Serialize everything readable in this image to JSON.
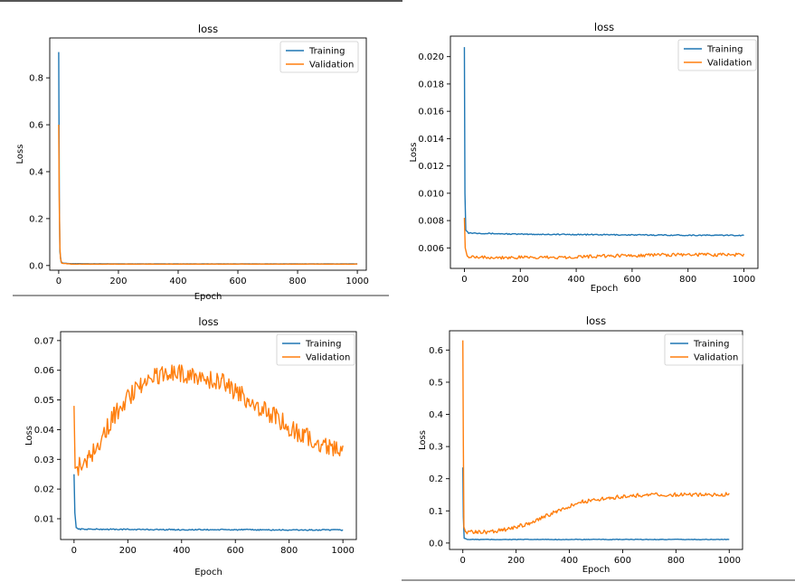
{
  "figure": {
    "background": "#ffffff",
    "series_colors": [
      "#1f77b4",
      "#ff7f0e"
    ]
  },
  "chart_data": [
    {
      "type": "line",
      "title": "loss",
      "xlabel": "Epoch",
      "ylabel": "Loss",
      "xlim": [
        -30,
        1030
      ],
      "ylim": [
        -0.02,
        0.97
      ],
      "xticks": [
        0,
        200,
        400,
        600,
        800,
        1000
      ],
      "xtick_labels": [
        "0",
        "200",
        "400",
        "600",
        "800",
        "1000"
      ],
      "yticks": [
        0.0,
        0.2,
        0.4,
        0.6,
        0.8
      ],
      "ytick_labels": [
        "0.0",
        "0.2",
        "0.4",
        "0.6",
        "0.8"
      ],
      "legend": "top-right",
      "series": [
        {
          "name": "Training",
          "color": "#1f77b4",
          "points": [
            [
              0,
              0.91
            ],
            [
              2,
              0.3
            ],
            [
              4,
              0.06
            ],
            [
              8,
              0.015
            ],
            [
              15,
              0.01
            ],
            [
              40,
              0.008
            ],
            [
              200,
              0.007
            ],
            [
              400,
              0.007
            ],
            [
              600,
              0.007
            ],
            [
              800,
              0.007
            ],
            [
              1000,
              0.007
            ]
          ]
        },
        {
          "name": "Validation",
          "color": "#ff7f0e",
          "points": [
            [
              0,
              0.6
            ],
            [
              2,
              0.25
            ],
            [
              4,
              0.08
            ],
            [
              6,
              0.03
            ],
            [
              10,
              0.01
            ],
            [
              40,
              0.006
            ],
            [
              200,
              0.006
            ],
            [
              400,
              0.006
            ],
            [
              600,
              0.006
            ],
            [
              800,
              0.006
            ],
            [
              1000,
              0.006
            ]
          ]
        }
      ]
    },
    {
      "type": "line",
      "title": "loss",
      "xlabel": "Epoch",
      "ylabel": "Loss",
      "xlim": [
        -50,
        1050
      ],
      "ylim": [
        0.0045,
        0.0215
      ],
      "xticks": [
        0,
        200,
        400,
        600,
        800,
        1000
      ],
      "xtick_labels": [
        "0",
        "200",
        "400",
        "600",
        "800",
        "1000"
      ],
      "yticks": [
        0.006,
        0.008,
        0.01,
        0.012,
        0.014,
        0.016,
        0.018,
        0.02
      ],
      "ytick_labels": [
        "0.006",
        "0.008",
        "0.010",
        "0.012",
        "0.014",
        "0.016",
        "0.018",
        "0.020"
      ],
      "legend": "top-right",
      "series": [
        {
          "name": "Training",
          "color": "#1f77b4",
          "points": [
            [
              0,
              0.0207
            ],
            [
              2,
              0.01
            ],
            [
              5,
              0.0073
            ],
            [
              15,
              0.0071
            ],
            [
              100,
              0.00705
            ],
            [
              200,
              0.007
            ],
            [
              400,
              0.00698
            ],
            [
              600,
              0.00695
            ],
            [
              800,
              0.00693
            ],
            [
              1000,
              0.00692
            ]
          ]
        },
        {
          "name": "Validation",
          "color": "#ff7f0e",
          "points": [
            [
              0,
              0.0082
            ],
            [
              3,
              0.006
            ],
            [
              10,
              0.0054
            ],
            [
              100,
              0.0053
            ],
            [
              200,
              0.0053
            ],
            [
              300,
              0.0053
            ],
            [
              400,
              0.00535
            ],
            [
              500,
              0.0054
            ],
            [
              600,
              0.00545
            ],
            [
              700,
              0.0055
            ],
            [
              800,
              0.0055
            ],
            [
              900,
              0.0055
            ],
            [
              1000,
              0.0055
            ]
          ]
        }
      ]
    },
    {
      "type": "line",
      "title": "loss",
      "xlabel": "Epoch",
      "ylabel": "Loss",
      "xlim": [
        -50,
        1050
      ],
      "ylim": [
        0.003,
        0.073
      ],
      "xticks": [
        0,
        200,
        400,
        600,
        800,
        1000
      ],
      "xtick_labels": [
        "0",
        "200",
        "400",
        "600",
        "800",
        "1000"
      ],
      "yticks": [
        0.01,
        0.02,
        0.03,
        0.04,
        0.05,
        0.06,
        0.07
      ],
      "ytick_labels": [
        "0.01",
        "0.02",
        "0.03",
        "0.04",
        "0.05",
        "0.06",
        "0.07"
      ],
      "legend": "top-right",
      "series": [
        {
          "name": "Training",
          "color": "#1f77b4",
          "points": [
            [
              0,
              0.025
            ],
            [
              3,
              0.012
            ],
            [
              8,
              0.007
            ],
            [
              20,
              0.0065
            ],
            [
              200,
              0.0064
            ],
            [
              400,
              0.0063
            ],
            [
              600,
              0.0063
            ],
            [
              800,
              0.0062
            ],
            [
              1000,
              0.0062
            ]
          ]
        },
        {
          "name": "Validation",
          "color": "#ff7f0e",
          "points": [
            [
              0,
              0.048
            ],
            [
              4,
              0.027
            ],
            [
              20,
              0.028
            ],
            [
              50,
              0.03
            ],
            [
              100,
              0.037
            ],
            [
              150,
              0.045
            ],
            [
              200,
              0.051
            ],
            [
              250,
              0.055
            ],
            [
              300,
              0.058
            ],
            [
              350,
              0.059
            ],
            [
              400,
              0.059
            ],
            [
              450,
              0.058
            ],
            [
              500,
              0.057
            ],
            [
              550,
              0.056
            ],
            [
              600,
              0.053
            ],
            [
              650,
              0.05
            ],
            [
              700,
              0.047
            ],
            [
              750,
              0.044
            ],
            [
              800,
              0.041
            ],
            [
              850,
              0.038
            ],
            [
              900,
              0.036
            ],
            [
              950,
              0.034
            ],
            [
              1000,
              0.033
            ]
          ]
        }
      ]
    },
    {
      "type": "line",
      "title": "loss",
      "xlabel": "Epoch",
      "ylabel": "Loss",
      "xlim": [
        -50,
        1050
      ],
      "ylim": [
        -0.02,
        0.66
      ],
      "xticks": [
        0,
        200,
        400,
        600,
        800,
        1000
      ],
      "xtick_labels": [
        "0",
        "200",
        "400",
        "600",
        "800",
        "1000"
      ],
      "yticks": [
        0.0,
        0.1,
        0.2,
        0.3,
        0.4,
        0.5,
        0.6
      ],
      "ytick_labels": [
        "0.0",
        "0.1",
        "0.2",
        "0.3",
        "0.4",
        "0.5",
        "0.6"
      ],
      "legend": "top-right",
      "series": [
        {
          "name": "Training",
          "color": "#1f77b4",
          "points": [
            [
              0,
              0.235
            ],
            [
              2,
              0.08
            ],
            [
              5,
              0.015
            ],
            [
              20,
              0.011
            ],
            [
              200,
              0.011
            ],
            [
              400,
              0.011
            ],
            [
              600,
              0.011
            ],
            [
              800,
              0.011
            ],
            [
              1000,
              0.011
            ]
          ]
        },
        {
          "name": "Validation",
          "color": "#ff7f0e",
          "points": [
            [
              0,
              0.63
            ],
            [
              2,
              0.3
            ],
            [
              4,
              0.05
            ],
            [
              10,
              0.035
            ],
            [
              50,
              0.033
            ],
            [
              100,
              0.035
            ],
            [
              150,
              0.04
            ],
            [
              200,
              0.05
            ],
            [
              250,
              0.062
            ],
            [
              300,
              0.08
            ],
            [
              350,
              0.097
            ],
            [
              400,
              0.115
            ],
            [
              450,
              0.128
            ],
            [
              500,
              0.135
            ],
            [
              550,
              0.14
            ],
            [
              600,
              0.145
            ],
            [
              650,
              0.148
            ],
            [
              700,
              0.15
            ],
            [
              800,
              0.15
            ],
            [
              900,
              0.15
            ],
            [
              1000,
              0.152
            ]
          ]
        }
      ]
    }
  ]
}
